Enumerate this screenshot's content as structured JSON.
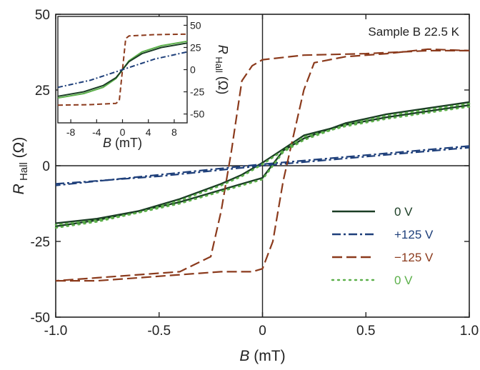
{
  "chart_data": [
    {
      "type": "line",
      "annotation": "Sample B  22.5 K",
      "xlabel_prefix": "B",
      "xlabel_suffix": " (mT)",
      "ylabel_prefix": "R",
      "ylabel_sub": "Hall",
      "ylabel_suffix": " (Ω)",
      "xlim": [
        -1.0,
        1.0
      ],
      "ylim": [
        -50,
        50
      ],
      "xticks": [
        -1.0,
        -0.5,
        0,
        0.5,
        1.0
      ],
      "xtick_labels": [
        "-1.0",
        "-0.5",
        "0",
        "0.5",
        "1.0"
      ],
      "yticks": [
        -50,
        -25,
        0,
        25,
        50
      ],
      "ytick_labels": [
        "-50",
        "-25",
        "0",
        "25",
        "50"
      ],
      "grid": false,
      "zero_lines": true,
      "legend_position": "lower-right",
      "series": [
        {
          "name": "0 V",
          "color": "#1a3d24",
          "style": "solid",
          "branches": [
            {
              "x": [
                -1.0,
                -0.8,
                -0.6,
                -0.4,
                -0.2,
                -0.1,
                0.0,
                0.1,
                0.2,
                0.4,
                0.6,
                0.8,
                1.0
              ],
              "y": [
                -20,
                -18,
                -15,
                -11,
                -6,
                -3,
                1,
                5.5,
                10,
                13.5,
                16,
                18,
                20
              ]
            },
            {
              "x": [
                1.0,
                0.8,
                0.6,
                0.4,
                0.2,
                0.1,
                0.0,
                -0.1,
                -0.2,
                -0.4,
                -0.6,
                -0.8,
                -1.0
              ],
              "y": [
                21,
                19,
                17,
                14,
                9,
                5,
                -4,
                -6,
                -8,
                -12,
                -15,
                -17.5,
                -19
              ]
            }
          ]
        },
        {
          "name": "+125 V",
          "color": "#1e3f7a",
          "style": "dashdot",
          "branches": [
            {
              "x": [
                -1.0,
                -0.5,
                0.0,
                0.5,
                1.0
              ],
              "y": [
                -6,
                -3.5,
                0,
                3,
                6
              ]
            },
            {
              "x": [
                1.0,
                0.5,
                0.0,
                -0.5,
                -1.0
              ],
              "y": [
                6.5,
                3.5,
                0.5,
                -3,
                -6.5
              ]
            }
          ]
        },
        {
          "name": "−125 V",
          "color": "#8b3a1c",
          "style": "dashed",
          "branches": [
            {
              "x": [
                -1.0,
                -0.8,
                -0.6,
                -0.4,
                -0.2,
                -0.05,
                0.0,
                0.05,
                0.1,
                0.15,
                0.2,
                0.25,
                0.4,
                0.6,
                0.8,
                1.0
              ],
              "y": [
                -38,
                -38,
                -37,
                -36,
                -35,
                -35,
                -34,
                -25,
                -5,
                10,
                25,
                34,
                36,
                37,
                38.5,
                38
              ]
            },
            {
              "x": [
                1.0,
                0.8,
                0.5,
                0.2,
                0.0,
                -0.05,
                -0.1,
                -0.15,
                -0.2,
                -0.25,
                -0.4,
                -0.6,
                -0.8,
                -1.0
              ],
              "y": [
                38,
                38,
                37,
                36.5,
                35,
                33,
                28,
                5,
                -15,
                -30,
                -35,
                -36,
                -37,
                -38
              ]
            }
          ]
        },
        {
          "name": "0 V",
          "color": "#5cb04a",
          "style": "dotted",
          "branches": [
            {
              "x": [
                -1.0,
                -0.8,
                -0.6,
                -0.4,
                -0.2,
                -0.1,
                0.0,
                0.1,
                0.2,
                0.4,
                0.6,
                0.8,
                1.0
              ],
              "y": [
                -20.5,
                -18.5,
                -15.5,
                -11.5,
                -6.5,
                -3.5,
                0.5,
                5,
                9.5,
                13,
                15.5,
                17.5,
                19.5
              ]
            },
            {
              "x": [
                1.0,
                0.8,
                0.6,
                0.4,
                0.2,
                0.1,
                0.0,
                -0.1,
                -0.2,
                -0.4,
                -0.6,
                -0.8,
                -1.0
              ],
              "y": [
                20.5,
                18.5,
                16.5,
                13.5,
                8.5,
                4.5,
                -4.5,
                -6.5,
                -8.5,
                -12.5,
                -15.5,
                -18,
                -19.5
              ]
            }
          ]
        }
      ]
    },
    {
      "type": "line",
      "placement": "inset-top-left",
      "xlabel_prefix": "B",
      "xlabel_suffix": " (mT)",
      "ylabel_prefix": "R",
      "ylabel_sub": "Hall",
      "ylabel_suffix": " (Ω)",
      "xlim": [
        -10,
        10
      ],
      "ylim": [
        -60,
        60
      ],
      "xticks": [
        -8,
        -4,
        0,
        4,
        8
      ],
      "xtick_labels": [
        "-8",
        "-4",
        "0",
        "4",
        "8"
      ],
      "yticks": [
        -50,
        -25,
        0,
        25,
        50
      ],
      "ytick_labels": [
        "-50",
        "-25",
        "0",
        "25",
        "50"
      ],
      "yaxis_side": "right",
      "series": [
        {
          "color": "#8b3a1c",
          "style": "dashed",
          "x": [
            -10,
            -5,
            -1,
            -0.5,
            0,
            0.5,
            1,
            5,
            10
          ],
          "y": [
            -40,
            -39.5,
            -38,
            -35,
            0,
            35,
            38,
            39.5,
            40
          ]
        },
        {
          "color": "#5cb04a",
          "style": "solid",
          "x": [
            -10,
            -6,
            -3,
            -1,
            0,
            1,
            3,
            6,
            10
          ],
          "y": [
            -32,
            -27,
            -20,
            -10,
            0,
            10,
            20,
            27,
            32
          ]
        },
        {
          "color": "#1a3d24",
          "style": "solid",
          "x": [
            -10,
            -6,
            -3,
            -1,
            0,
            1,
            3,
            6,
            10
          ],
          "y": [
            -30,
            -25,
            -18,
            -9,
            0,
            9,
            18,
            25,
            30
          ]
        },
        {
          "color": "#1e3f7a",
          "style": "dashdot",
          "x": [
            -10,
            -5,
            0,
            5,
            10
          ],
          "y": [
            -20,
            -12,
            0,
            12,
            20
          ]
        }
      ]
    }
  ]
}
